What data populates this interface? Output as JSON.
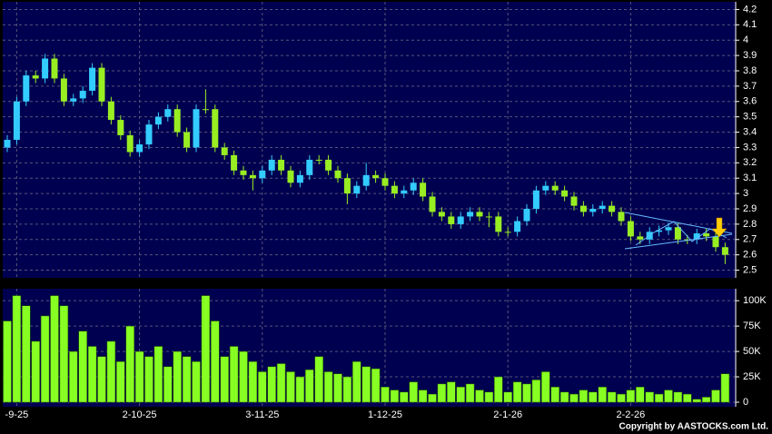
{
  "chart_data": {
    "type": "candlestick",
    "categories": [
      null,
      "-9-25",
      null,
      null,
      null,
      null,
      null,
      null,
      null,
      null,
      null,
      null,
      null,
      null,
      "2-10-25",
      null,
      null,
      null,
      null,
      null,
      null,
      null,
      null,
      null,
      null,
      null,
      null,
      "3-11-25",
      null,
      null,
      null,
      null,
      null,
      null,
      null,
      null,
      null,
      null,
      null,
      null,
      "1-12-25",
      null,
      null,
      null,
      null,
      null,
      null,
      null,
      null,
      null,
      null,
      null,
      null,
      "2-1-26",
      null,
      null,
      null,
      null,
      null,
      null,
      null,
      null,
      null,
      null,
      null,
      null,
      "2-2-26",
      null,
      null,
      null,
      null,
      null,
      null,
      null,
      null,
      null,
      null
    ],
    "open": [
      3.3,
      3.35,
      3.6,
      3.77,
      3.75,
      3.88,
      3.75,
      3.6,
      3.62,
      3.67,
      3.82,
      3.6,
      3.48,
      3.38,
      3.27,
      3.32,
      3.45,
      3.5,
      3.55,
      3.4,
      3.3,
      3.55,
      3.55,
      3.3,
      3.25,
      3.15,
      3.12,
      3.1,
      3.15,
      3.22,
      3.15,
      3.07,
      3.12,
      3.22,
      3.22,
      3.15,
      3.1,
      3.0,
      3.05,
      3.12,
      3.1,
      3.05,
      3.0,
      3.02,
      3.07,
      2.98,
      2.88,
      2.85,
      2.8,
      2.85,
      2.88,
      2.85,
      2.85,
      2.75,
      2.75,
      2.82,
      2.9,
      3.02,
      3.05,
      3.02,
      2.98,
      2.92,
      2.88,
      2.9,
      2.92,
      2.88,
      2.82,
      2.72,
      2.7,
      2.75,
      2.76,
      2.78,
      2.7,
      2.7,
      2.74,
      2.72,
      2.65
    ],
    "high": [
      3.38,
      3.63,
      3.8,
      3.8,
      3.91,
      3.91,
      3.78,
      3.65,
      3.7,
      3.85,
      3.85,
      3.63,
      3.51,
      3.41,
      3.35,
      3.48,
      3.53,
      3.58,
      3.58,
      3.43,
      3.58,
      3.68,
      3.58,
      3.33,
      3.28,
      3.18,
      3.15,
      3.18,
      3.25,
      3.25,
      3.18,
      3.15,
      3.25,
      3.25,
      3.25,
      3.18,
      3.13,
      3.08,
      3.2,
      3.15,
      3.13,
      3.08,
      3.05,
      3.1,
      3.1,
      3.01,
      2.91,
      2.88,
      2.88,
      2.91,
      2.91,
      2.88,
      2.88,
      2.78,
      2.85,
      2.93,
      3.05,
      3.08,
      3.08,
      3.05,
      3.01,
      2.95,
      2.93,
      2.95,
      2.95,
      2.91,
      2.85,
      2.75,
      2.78,
      2.79,
      2.81,
      2.81,
      2.73,
      2.77,
      2.77,
      2.75,
      2.68
    ],
    "low": [
      3.27,
      3.32,
      3.57,
      3.72,
      3.72,
      3.72,
      3.57,
      3.57,
      3.59,
      3.64,
      3.57,
      3.45,
      3.35,
      3.24,
      3.24,
      3.29,
      3.42,
      3.47,
      3.37,
      3.27,
      3.27,
      3.52,
      3.27,
      3.22,
      3.12,
      3.09,
      3.02,
      3.07,
      3.12,
      3.12,
      3.04,
      3.04,
      3.09,
      3.19,
      3.12,
      3.07,
      2.93,
      2.97,
      3.02,
      3.07,
      3.02,
      2.97,
      2.97,
      2.99,
      2.95,
      2.85,
      2.82,
      2.77,
      2.77,
      2.82,
      2.82,
      2.78,
      2.72,
      2.72,
      2.72,
      2.79,
      2.87,
      2.99,
      2.99,
      2.95,
      2.89,
      2.85,
      2.85,
      2.87,
      2.85,
      2.79,
      2.69,
      2.67,
      2.67,
      2.72,
      2.73,
      2.67,
      2.67,
      2.67,
      2.69,
      2.62,
      2.54
    ],
    "close": [
      3.35,
      3.6,
      3.77,
      3.75,
      3.88,
      3.75,
      3.6,
      3.62,
      3.67,
      3.82,
      3.6,
      3.48,
      3.38,
      3.27,
      3.32,
      3.45,
      3.5,
      3.55,
      3.4,
      3.3,
      3.55,
      3.55,
      3.3,
      3.25,
      3.15,
      3.12,
      3.1,
      3.15,
      3.22,
      3.15,
      3.07,
      3.12,
      3.22,
      3.22,
      3.15,
      3.1,
      3.0,
      3.05,
      3.12,
      3.1,
      3.05,
      3.0,
      3.02,
      3.07,
      2.98,
      2.88,
      2.85,
      2.8,
      2.85,
      2.88,
      2.85,
      2.85,
      2.75,
      2.75,
      2.82,
      2.9,
      3.02,
      3.05,
      3.02,
      2.98,
      2.92,
      2.88,
      2.9,
      2.92,
      2.88,
      2.82,
      2.72,
      2.7,
      2.75,
      2.76,
      2.78,
      2.7,
      2.7,
      2.74,
      2.72,
      2.65,
      2.6
    ],
    "up_color": "#33ccff",
    "down_color": "#99ee22",
    "ylim": [
      2.45,
      4.25
    ],
    "yticks": [
      2.5,
      2.6,
      2.7,
      2.8,
      2.9,
      3,
      3.1,
      3.2,
      3.3,
      3.4,
      3.5,
      3.6,
      3.7,
      3.8,
      3.9,
      4,
      4.1,
      4.2
    ],
    "grid": true,
    "volume": {
      "color": "#88ff22",
      "values": [
        80000,
        105000,
        95000,
        60000,
        85000,
        105000,
        95000,
        50000,
        70000,
        55000,
        45000,
        60000,
        40000,
        75000,
        50000,
        45000,
        55000,
        35000,
        50000,
        45000,
        40000,
        105000,
        80000,
        45000,
        55000,
        50000,
        40000,
        30000,
        35000,
        38000,
        30000,
        25000,
        32000,
        45000,
        30000,
        28000,
        25000,
        40000,
        35000,
        33000,
        15000,
        12000,
        10000,
        20000,
        12000,
        8000,
        18000,
        20000,
        15000,
        18000,
        12000,
        10000,
        25000,
        10000,
        20000,
        18000,
        22000,
        30000,
        15000,
        10000,
        8000,
        12000,
        10000,
        15000,
        10000,
        8000,
        12000,
        15000,
        10000,
        8000,
        12000,
        10000,
        8000,
        3000,
        5000,
        12000,
        28000
      ],
      "ylim": [
        0,
        110000
      ],
      "yticks": [
        0,
        {
          "value": 25000,
          "label": "25K"
        },
        {
          "value": 50000,
          "label": "50K"
        },
        {
          "value": 75000,
          "label": "75K"
        },
        {
          "value": 100000,
          "label": "100K"
        }
      ]
    },
    "copyright": "Copyright by AASTOCKS.com Ltd."
  }
}
